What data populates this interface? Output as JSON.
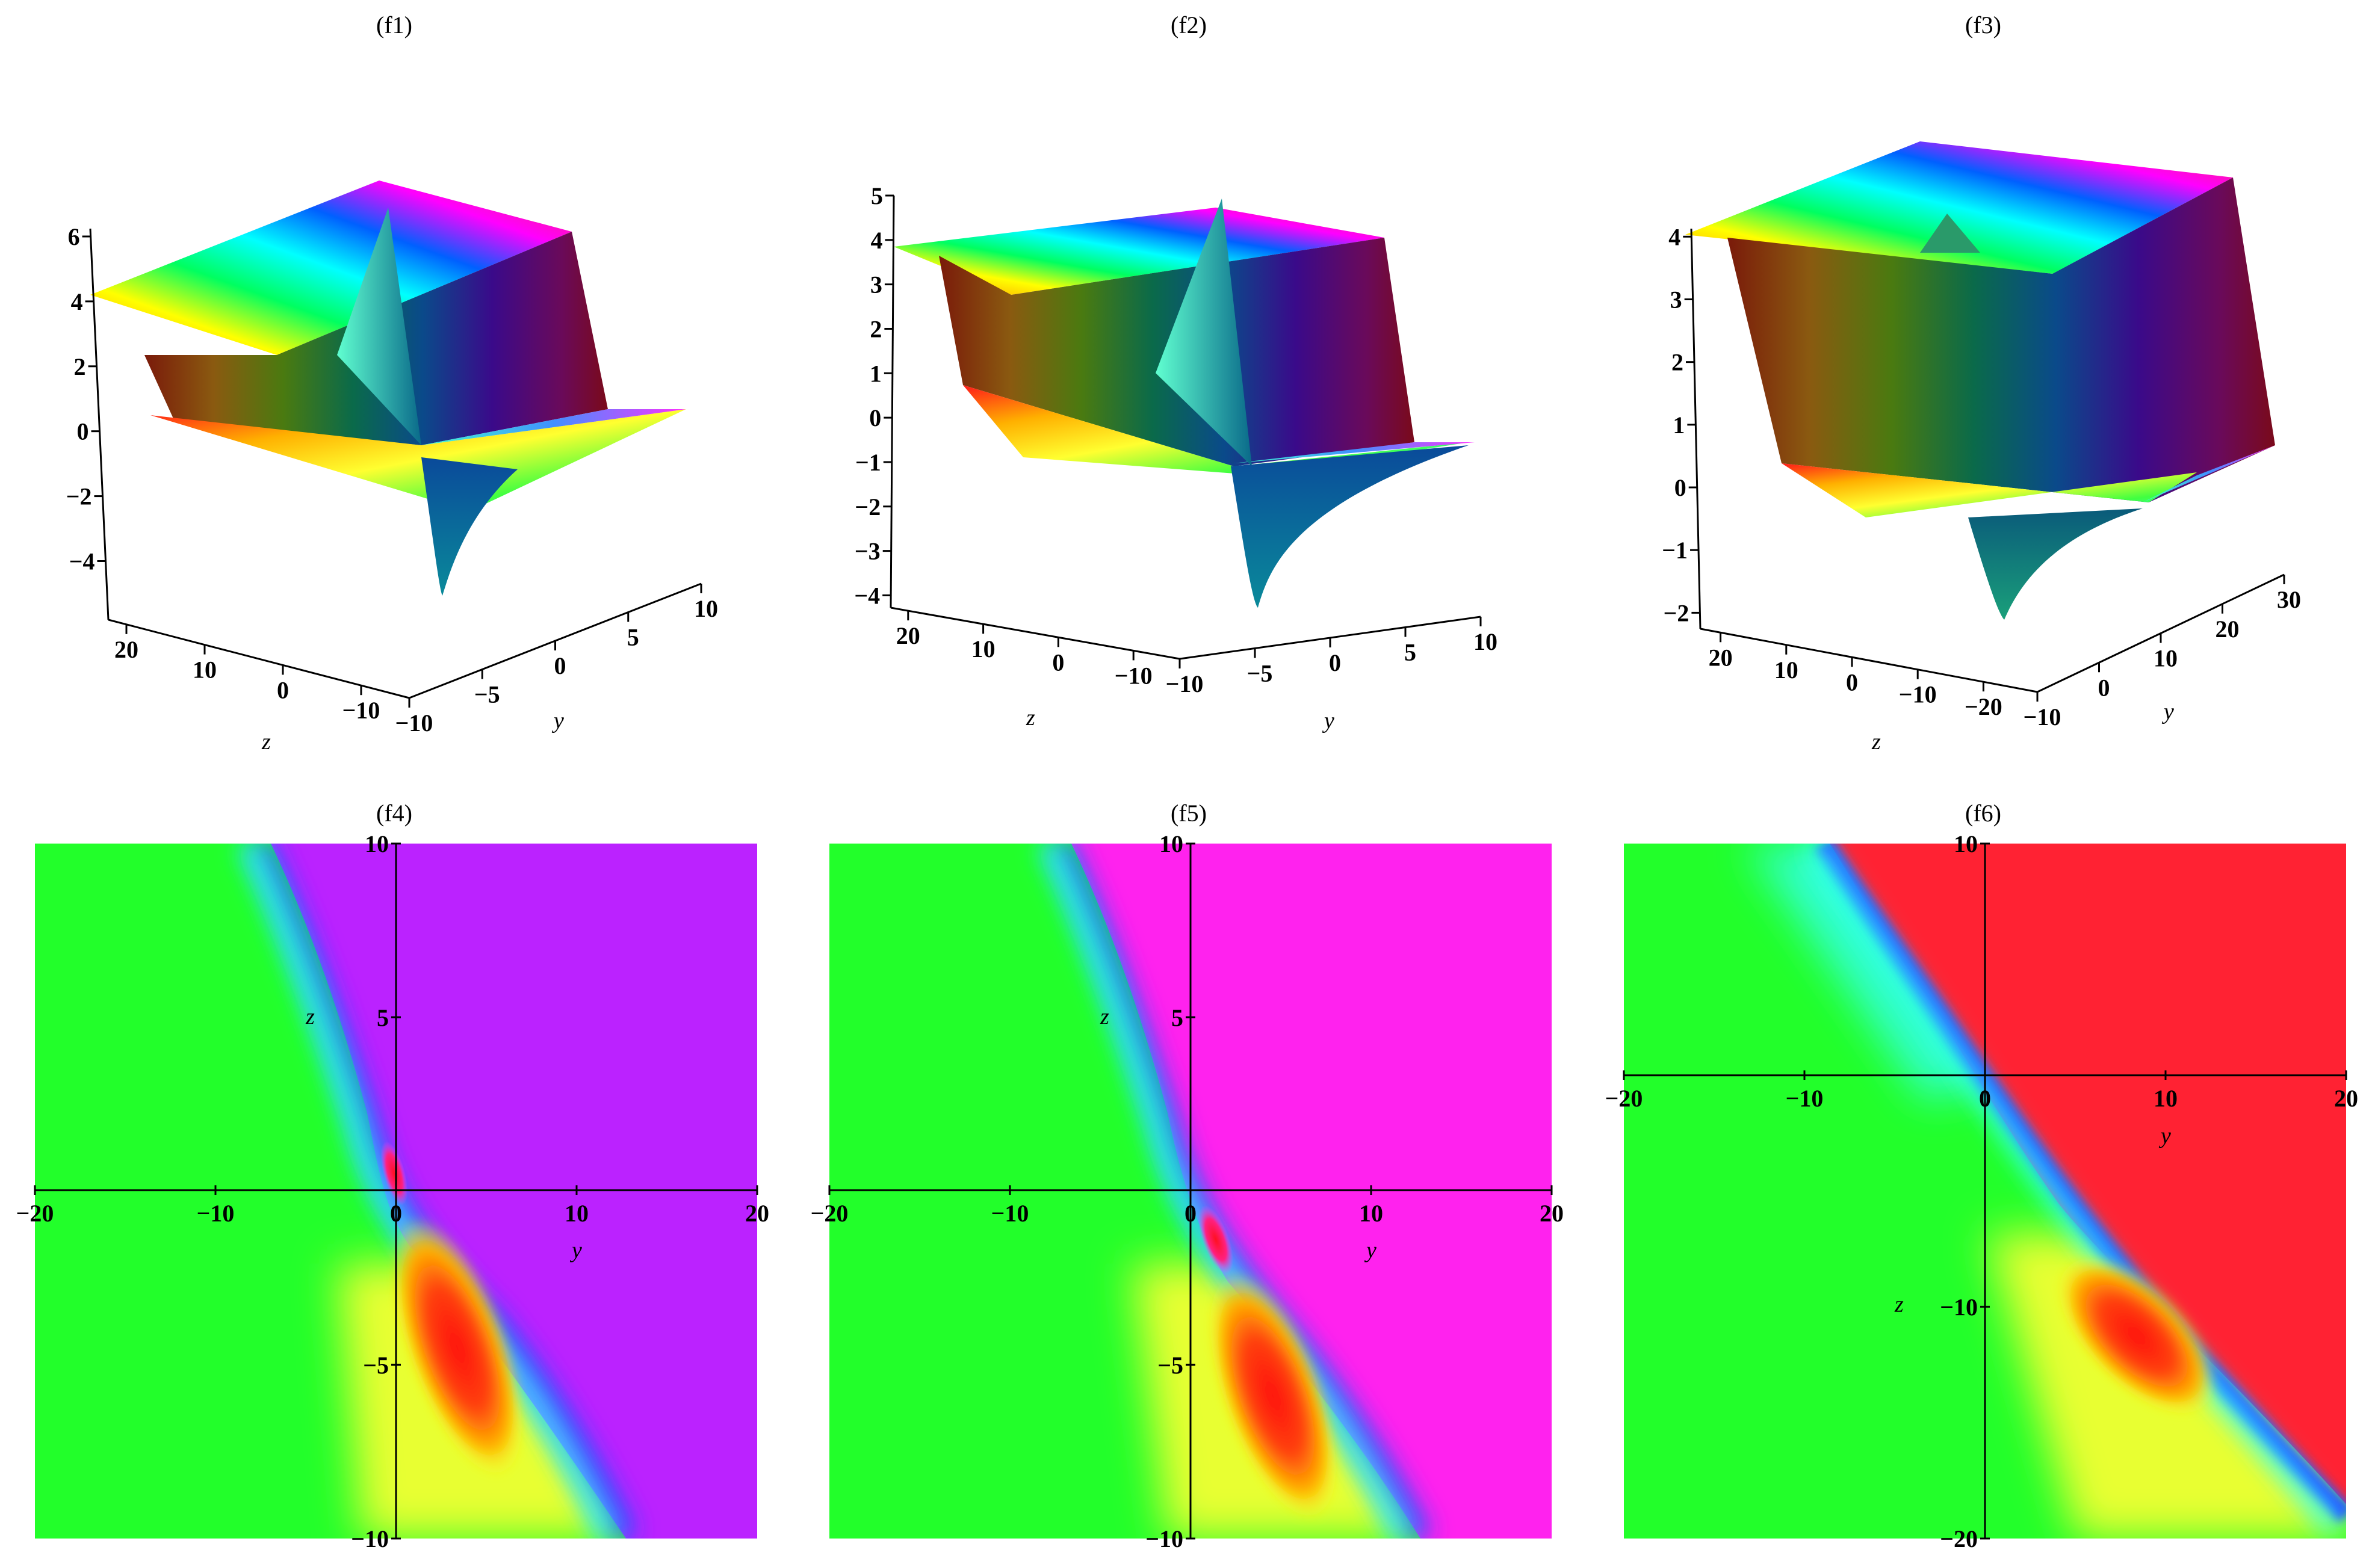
{
  "figure": {
    "panels": [
      "(f1)",
      "(f2)",
      "(f3)",
      "(f4)",
      "(f5)",
      "(f6)"
    ]
  },
  "chart_data": [
    {
      "type": "surface",
      "title": "(f1)",
      "z_axis_ticks": [
        "6",
        "4",
        "2",
        "0",
        "−2",
        "−4"
      ],
      "z_axis_label_values": [
        6,
        4,
        2,
        0,
        -2,
        -4
      ],
      "x_axis_label": "z",
      "x_axis_ticks": [
        "20",
        "10",
        "0",
        "−10"
      ],
      "y_axis_label": "y",
      "y_axis_ticks": [
        "−10",
        "−5",
        "0",
        "5",
        "10"
      ],
      "description_levels": {
        "high_plateau": 4,
        "low_plateau": 0,
        "peak": 6,
        "trough": -5
      }
    },
    {
      "type": "surface",
      "title": "(f2)",
      "z_axis_ticks": [
        "5",
        "4",
        "3",
        "2",
        "1",
        "0",
        "−1",
        "−2",
        "−3",
        "−4"
      ],
      "x_axis_label": "z",
      "x_axis_ticks": [
        "20",
        "10",
        "0",
        "−10"
      ],
      "y_axis_label": "y",
      "y_axis_ticks": [
        "−10",
        "−5",
        "0",
        "5",
        "10"
      ],
      "description_levels": {
        "high_plateau": 4,
        "low_plateau": 0,
        "peak": 5,
        "trough": -4.5
      }
    },
    {
      "type": "surface",
      "title": "(f3)",
      "z_axis_ticks": [
        "4",
        "3",
        "2",
        "1",
        "0",
        "−1",
        "−2"
      ],
      "x_axis_label": "z",
      "x_axis_ticks": [
        "20",
        "10",
        "0",
        "−10",
        "−20"
      ],
      "y_axis_label": "y",
      "y_axis_ticks": [
        "−10",
        "0",
        "10",
        "20",
        "30"
      ],
      "description_levels": {
        "high_plateau": 4,
        "low_plateau": 0,
        "peak": 4.5,
        "trough": -2
      }
    },
    {
      "type": "heatmap",
      "title": "(f4)",
      "xlabel": "y",
      "ylabel": "z",
      "xlim": [
        -20,
        20
      ],
      "ylim": [
        -10,
        10
      ],
      "x_ticks": [
        "−20",
        "−10",
        "0",
        "10",
        "20"
      ],
      "y_ticks": [
        "10",
        "5",
        "−5",
        "−10"
      ],
      "colors": {
        "left": "#22ff22",
        "right": "#bb22ff",
        "blob": "#ff2222"
      }
    },
    {
      "type": "heatmap",
      "title": "(f5)",
      "xlabel": "y",
      "ylabel": "z",
      "xlim": [
        -20,
        20
      ],
      "ylim": [
        -10,
        10
      ],
      "x_ticks": [
        "−20",
        "−10",
        "0",
        "10",
        "20"
      ],
      "y_ticks": [
        "10",
        "5",
        "−5",
        "−10"
      ],
      "colors": {
        "left": "#22ff22",
        "right": "#ff22ee",
        "blob": "#ff2222"
      }
    },
    {
      "type": "heatmap",
      "title": "(f6)",
      "xlabel": "y",
      "ylabel": "z",
      "xlim": [
        -20,
        20
      ],
      "ylim": [
        -20,
        10
      ],
      "x_ticks": [
        "−20",
        "−10",
        "0",
        "10",
        "20"
      ],
      "y_ticks": [
        "10",
        "−10",
        "−20"
      ],
      "colors": {
        "left": "#22ff22",
        "right": "#ff2233",
        "blob": "#ff2222"
      }
    }
  ]
}
